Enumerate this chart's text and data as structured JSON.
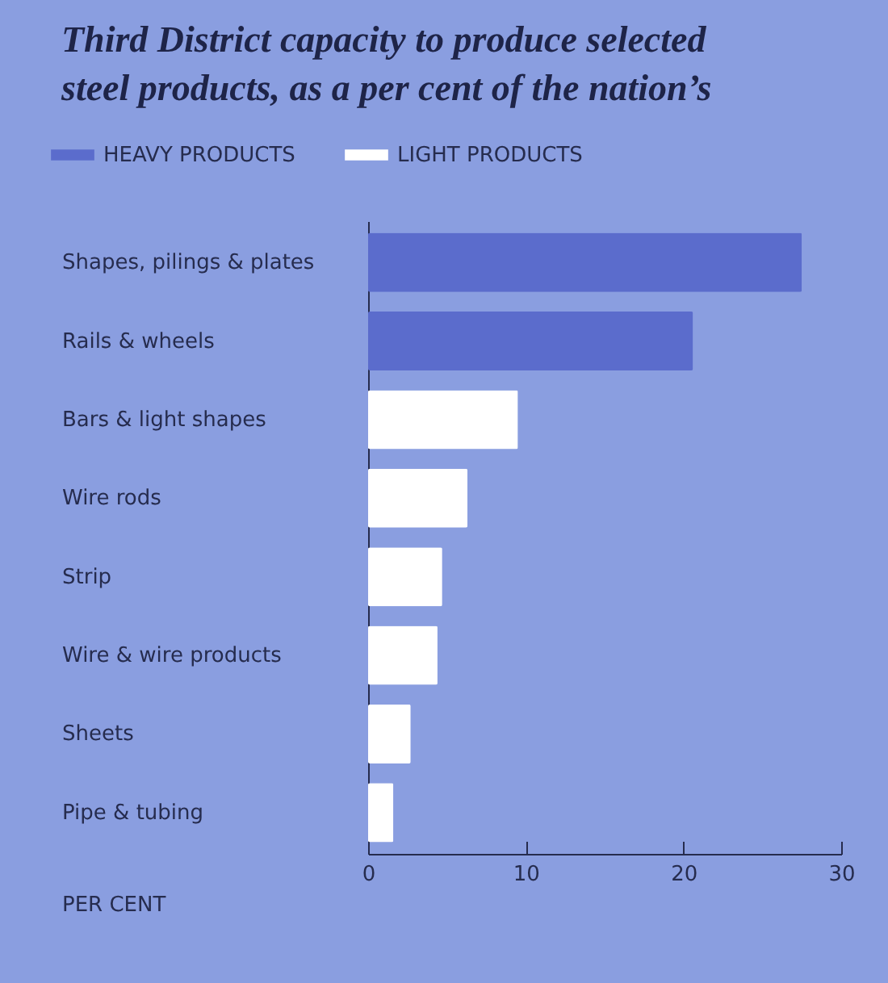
{
  "chart_data": {
    "type": "bar",
    "orientation": "horizontal",
    "title": "Third District capacity to produce selected steel products, as a per cent of the nation’s",
    "xlabel": "PER CENT",
    "categories": [
      "Shapes, pilings & plates",
      "Rails & wheels",
      "Bars & light shapes",
      "Wire rods",
      "Strip",
      "Wire & wire products",
      "Sheets",
      "Pipe & tubing"
    ],
    "series": [
      {
        "name": "HEAVY PRODUCTS",
        "color": "#5b6ccc",
        "values": [
          27.5,
          20.6,
          null,
          null,
          null,
          null,
          null,
          null
        ]
      },
      {
        "name": "LIGHT PRODUCTS",
        "color": "#ffffff",
        "values": [
          null,
          null,
          9.5,
          6.3,
          4.7,
          4.4,
          2.7,
          1.6
        ]
      }
    ],
    "xlim": [
      0,
      30
    ],
    "xticks": [
      0,
      10,
      20,
      30
    ],
    "legend": "top left",
    "grid": false
  }
}
